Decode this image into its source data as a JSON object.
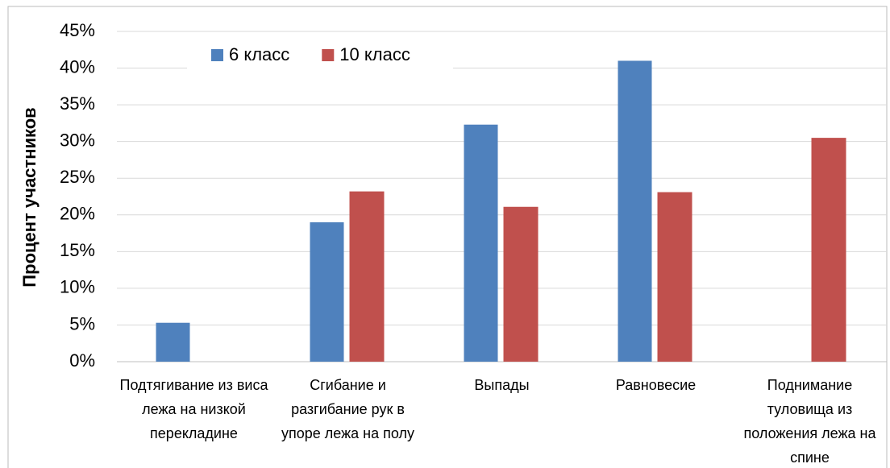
{
  "chart_data": {
    "type": "bar",
    "y_label": "Процент участников",
    "categories": [
      "Подтягивание из виса лежа на низкой перекладине",
      "Сгибание и разгибание рук в упоре лежа на полу",
      "Выпады",
      "Равновесие",
      "Поднимание туловища из положения лежа на спине"
    ],
    "series": [
      {
        "name": "6 класс",
        "color": "#4f81bd",
        "values": [
          5.3,
          19,
          32.3,
          41,
          0
        ]
      },
      {
        "name": "10 класс",
        "color": "#c0504d",
        "values": [
          0,
          23.2,
          21.1,
          23.1,
          30.5
        ]
      }
    ],
    "ylim": [
      0,
      45
    ],
    "yticks": [
      {
        "value": 0,
        "label": "0%"
      },
      {
        "value": 5,
        "label": "5%"
      },
      {
        "value": 10,
        "label": "10%"
      },
      {
        "value": 15,
        "label": "15%"
      },
      {
        "value": 20,
        "label": "20%"
      },
      {
        "value": 25,
        "label": "25%"
      },
      {
        "value": 30,
        "label": "30%"
      },
      {
        "value": 35,
        "label": "35%"
      },
      {
        "value": 40,
        "label": "40%"
      },
      {
        "value": 45,
        "label": "45%"
      }
    ],
    "grid": true,
    "legend": "top"
  }
}
